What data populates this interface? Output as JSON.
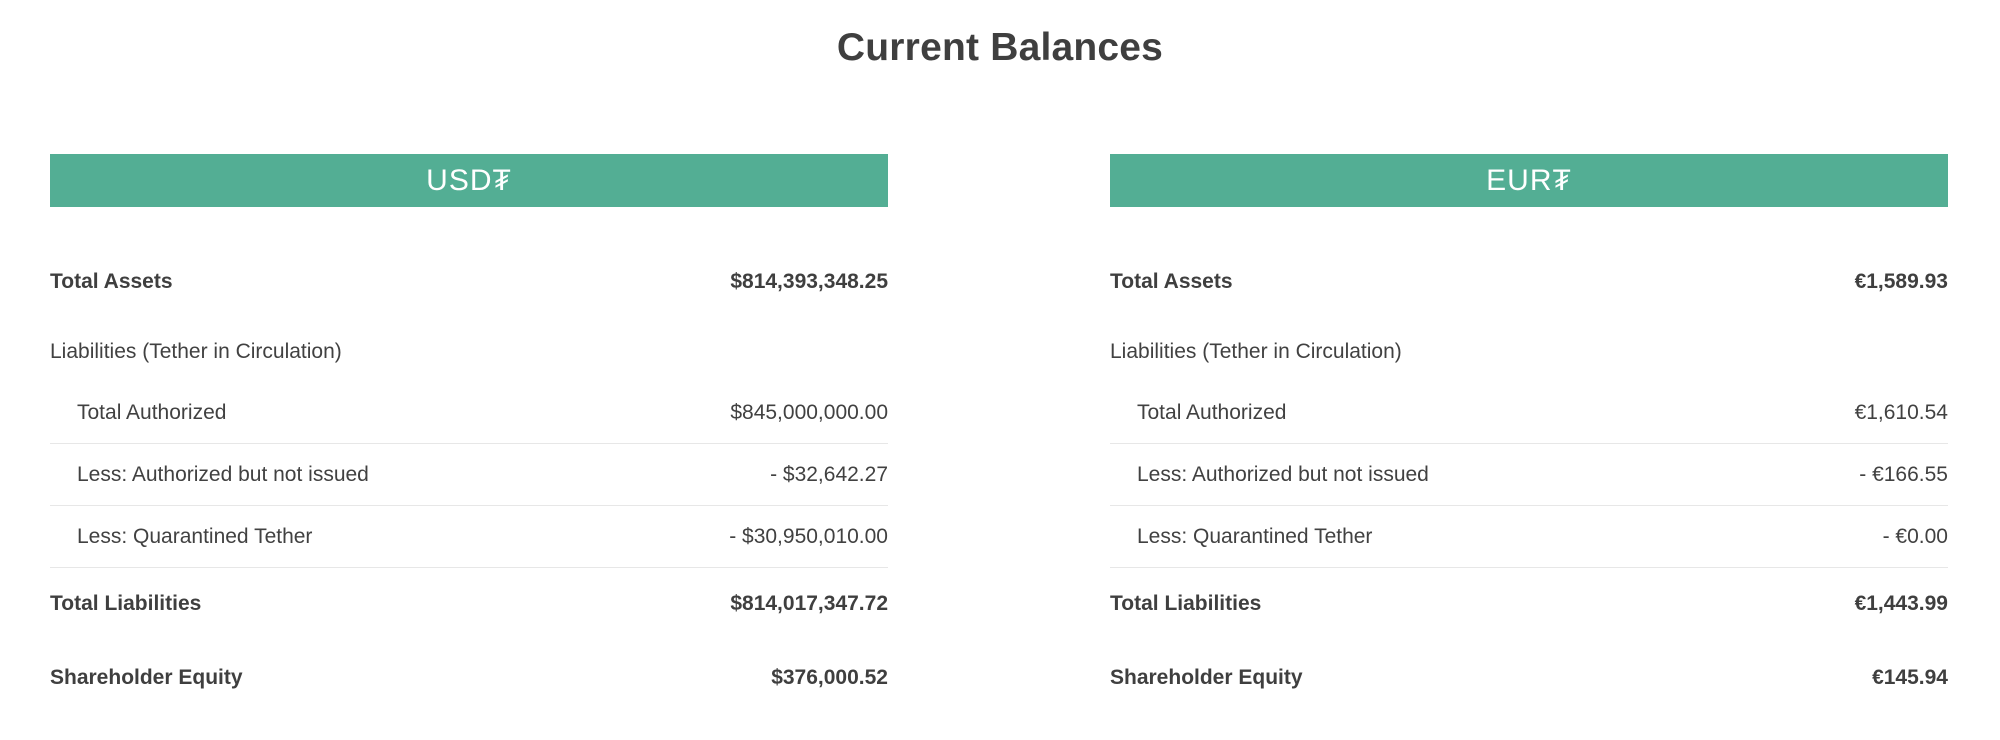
{
  "page": {
    "title": "Current Balances"
  },
  "colors": {
    "accent_green": "#53ae94",
    "text": "#414141",
    "divider": "#e7e7e7"
  },
  "panels": [
    {
      "header": "USD₮",
      "total_assets_label": "Total Assets",
      "total_assets_value": "$814,393,348.25",
      "liabilities_section_label": "Liabilities (Tether in Circulation)",
      "total_authorized_label": "Total Authorized",
      "total_authorized_value": "$845,000,000.00",
      "less_authorized_label": "Less: Authorized but not issued",
      "less_authorized_value": "- $32,642.27",
      "less_quarantined_label": "Less: Quarantined Tether",
      "less_quarantined_value": "- $30,950,010.00",
      "total_liabilities_label": "Total Liabilities",
      "total_liabilities_value": "$814,017,347.72",
      "shareholder_equity_label": "Shareholder Equity",
      "shareholder_equity_value": "$376,000.52"
    },
    {
      "header": "EUR₮",
      "total_assets_label": "Total Assets",
      "total_assets_value": "€1,589.93",
      "liabilities_section_label": "Liabilities (Tether in Circulation)",
      "total_authorized_label": "Total Authorized",
      "total_authorized_value": "€1,610.54",
      "less_authorized_label": "Less: Authorized but not issued",
      "less_authorized_value": "- €166.55",
      "less_quarantined_label": "Less: Quarantined Tether",
      "less_quarantined_value": "- €0.00",
      "total_liabilities_label": "Total Liabilities",
      "total_liabilities_value": "€1,443.99",
      "shareholder_equity_label": "Shareholder Equity",
      "shareholder_equity_value": "€145.94"
    }
  ]
}
